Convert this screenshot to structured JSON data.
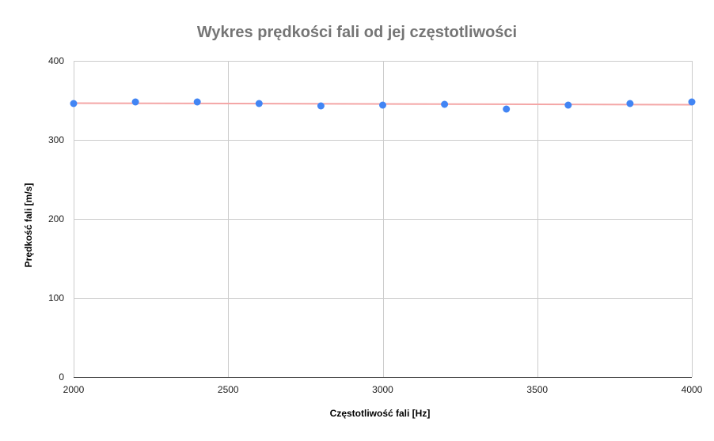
{
  "chart_data": {
    "type": "scatter",
    "title": "Wykres prędkości fali od jej częstotliwości",
    "xlabel": "Częstotliwość fali [Hz]",
    "ylabel": "Prędkość fali [m/s]",
    "xlim": [
      2000,
      4000
    ],
    "ylim": [
      0,
      400
    ],
    "xticks": [
      2000,
      2500,
      3000,
      3500,
      4000
    ],
    "yticks": [
      0,
      100,
      200,
      300,
      400
    ],
    "grid": true,
    "legend": "none",
    "series": [
      {
        "color": "#4285f4",
        "x": [
          2000,
          2200,
          2400,
          2600,
          2800,
          3000,
          3200,
          3400,
          3600,
          3800,
          4000
        ],
        "y": [
          346,
          348,
          348,
          346,
          343,
          344,
          345,
          339,
          344,
          346,
          348
        ]
      }
    ],
    "trendline": {
      "type": "linear",
      "color": "#f4a6a6",
      "x": [
        2000,
        4000
      ],
      "y": [
        346.5,
        344.5
      ]
    }
  }
}
